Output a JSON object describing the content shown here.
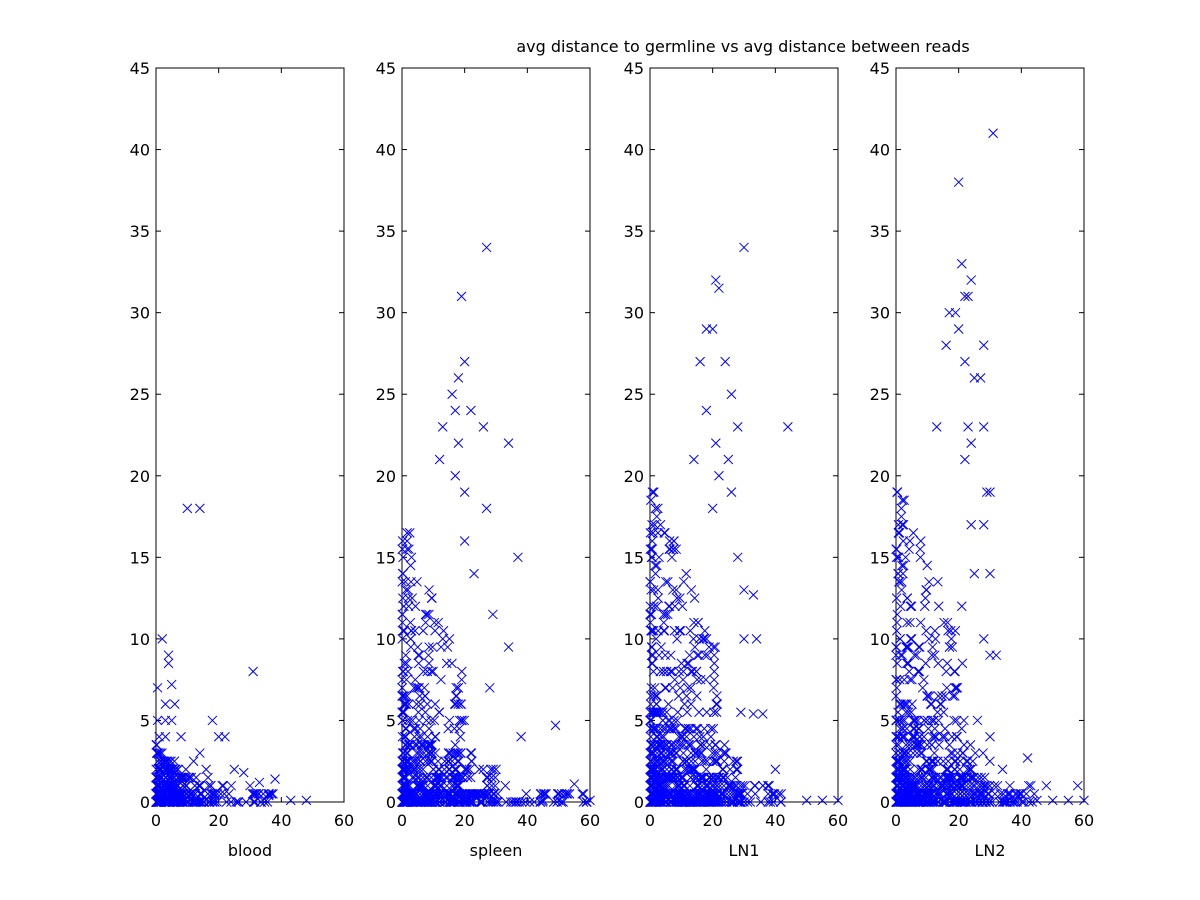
{
  "title": "avg distance to germline vs avg distance between reads",
  "colors": {
    "marker": "#0000ff",
    "axes": "#000000",
    "background": "#ffffff"
  },
  "chart_data": [
    {
      "type": "scatter",
      "marker": "x",
      "xlabel": "blood",
      "ylabel": "",
      "xlim": [
        0,
        60
      ],
      "ylim": [
        0,
        45
      ],
      "xticks": [
        0,
        20,
        40,
        60
      ],
      "yticks": [
        0,
        5,
        10,
        15,
        20,
        25,
        30,
        35,
        40,
        45
      ],
      "points": [
        [
          10,
          18
        ],
        [
          14,
          18
        ],
        [
          2,
          10
        ],
        [
          4,
          9
        ],
        [
          4,
          8.5
        ],
        [
          31,
          8
        ],
        [
          5,
          7.2
        ],
        [
          0.5,
          7
        ],
        [
          3,
          6
        ],
        [
          6,
          6
        ],
        [
          0.5,
          5
        ],
        [
          3,
          5
        ],
        [
          5,
          5
        ],
        [
          18,
          5
        ],
        [
          1,
          4
        ],
        [
          3,
          4
        ],
        [
          8,
          4
        ],
        [
          20,
          4
        ],
        [
          22,
          4
        ],
        [
          14,
          3
        ],
        [
          25,
          2
        ],
        [
          30,
          1
        ],
        [
          38,
          1.4
        ],
        [
          43,
          0.1
        ],
        [
          48,
          0.1
        ],
        [
          36,
          0.4
        ],
        [
          33,
          1.2
        ],
        [
          12,
          2.5
        ],
        [
          16,
          2
        ],
        [
          24,
          1
        ],
        [
          28,
          1.8
        ]
      ],
      "clusters": [
        {
          "x": [
            0,
            10
          ],
          "y": [
            0,
            3.5
          ],
          "n": 170
        },
        {
          "x": [
            0,
            20
          ],
          "y": [
            0,
            2.5
          ],
          "n": 120
        },
        {
          "x": [
            0,
            38
          ],
          "y": [
            0,
            1.5
          ],
          "n": 80
        }
      ]
    },
    {
      "type": "scatter",
      "marker": "x",
      "xlabel": "spleen",
      "ylabel": "",
      "xlim": [
        0,
        60
      ],
      "ylim": [
        0,
        45
      ],
      "xticks": [
        0,
        20,
        40,
        60
      ],
      "yticks": [
        0,
        5,
        10,
        15,
        20,
        25,
        30,
        35,
        40,
        45
      ],
      "points": [
        [
          27,
          34
        ],
        [
          19,
          31
        ],
        [
          20,
          27
        ],
        [
          18,
          26
        ],
        [
          16,
          25
        ],
        [
          17,
          24
        ],
        [
          22,
          24
        ],
        [
          26,
          23
        ],
        [
          13,
          23
        ],
        [
          18,
          22
        ],
        [
          34,
          22
        ],
        [
          12,
          21
        ],
        [
          17,
          20
        ],
        [
          20,
          19
        ],
        [
          27,
          18
        ],
        [
          37,
          15
        ],
        [
          20,
          16
        ],
        [
          23,
          14
        ],
        [
          29,
          11.5
        ],
        [
          34,
          9.5
        ],
        [
          38,
          4
        ],
        [
          49,
          4.7
        ],
        [
          55,
          1.1
        ],
        [
          60,
          0.1
        ],
        [
          50,
          0.1
        ],
        [
          45,
          0.1
        ],
        [
          28,
          7
        ],
        [
          30,
          2
        ],
        [
          33,
          1
        ]
      ],
      "clusters": [
        {
          "x": [
            0,
            20
          ],
          "y": [
            0,
            18
          ],
          "n": 300
        },
        {
          "x": [
            0,
            30
          ],
          "y": [
            0,
            5
          ],
          "n": 220
        },
        {
          "x": [
            0,
            60
          ],
          "y": [
            0,
            1
          ],
          "n": 120
        }
      ]
    },
    {
      "type": "scatter",
      "marker": "x",
      "xlabel": "LN1",
      "ylabel": "",
      "xlim": [
        0,
        60
      ],
      "ylim": [
        0,
        45
      ],
      "xticks": [
        0,
        20,
        40,
        60
      ],
      "yticks": [
        0,
        5,
        10,
        15,
        20,
        25,
        30,
        35,
        40,
        45
      ],
      "points": [
        [
          30,
          34
        ],
        [
          21,
          32
        ],
        [
          22,
          31.5
        ],
        [
          18,
          29
        ],
        [
          20,
          29
        ],
        [
          16,
          27
        ],
        [
          24,
          27
        ],
        [
          26,
          25
        ],
        [
          18,
          24
        ],
        [
          28,
          23
        ],
        [
          44,
          23
        ],
        [
          21,
          22
        ],
        [
          25,
          21
        ],
        [
          14,
          21
        ],
        [
          22,
          20
        ],
        [
          26,
          19
        ],
        [
          20,
          18
        ],
        [
          28,
          15
        ],
        [
          30,
          13
        ],
        [
          33,
          12.7
        ],
        [
          30,
          10
        ],
        [
          34,
          10
        ],
        [
          29,
          5.5
        ],
        [
          33,
          5.4
        ],
        [
          36,
          5.4
        ],
        [
          40,
          2
        ],
        [
          50,
          0.1
        ],
        [
          55,
          0.1
        ],
        [
          60,
          0.1
        ],
        [
          38,
          1
        ]
      ],
      "clusters": [
        {
          "x": [
            0,
            22
          ],
          "y": [
            0,
            20
          ],
          "n": 340
        },
        {
          "x": [
            0,
            30
          ],
          "y": [
            0,
            6
          ],
          "n": 240
        },
        {
          "x": [
            0,
            42
          ],
          "y": [
            0,
            2
          ],
          "n": 150
        }
      ]
    },
    {
      "type": "scatter",
      "marker": "x",
      "xlabel": "LN2",
      "ylabel": "",
      "xlim": [
        0,
        60
      ],
      "ylim": [
        0,
        45
      ],
      "xticks": [
        0,
        20,
        40,
        60
      ],
      "yticks": [
        0,
        5,
        10,
        15,
        20,
        25,
        30,
        35,
        40,
        45
      ],
      "points": [
        [
          31,
          41
        ],
        [
          20,
          38
        ],
        [
          21,
          33
        ],
        [
          24,
          32
        ],
        [
          22,
          31
        ],
        [
          23,
          31
        ],
        [
          19,
          30
        ],
        [
          17,
          30
        ],
        [
          20,
          29
        ],
        [
          28,
          28
        ],
        [
          16,
          28
        ],
        [
          22,
          27
        ],
        [
          25,
          26
        ],
        [
          27,
          26
        ],
        [
          23,
          23
        ],
        [
          28,
          23
        ],
        [
          13,
          23
        ],
        [
          24,
          22
        ],
        [
          22,
          21
        ],
        [
          29,
          19
        ],
        [
          30,
          19
        ],
        [
          24,
          17
        ],
        [
          28,
          17
        ],
        [
          25,
          14
        ],
        [
          30,
          14
        ],
        [
          21,
          12
        ],
        [
          28,
          10
        ],
        [
          30,
          9
        ],
        [
          32,
          9
        ],
        [
          26,
          5
        ],
        [
          30,
          4
        ],
        [
          34,
          2
        ],
        [
          42,
          2.7
        ],
        [
          48,
          1
        ],
        [
          58,
          1
        ],
        [
          55,
          0.1
        ],
        [
          50,
          0.1
        ],
        [
          45,
          0.1
        ],
        [
          60,
          0.1
        ]
      ],
      "clusters": [
        {
          "x": [
            0,
            22
          ],
          "y": [
            0,
            20
          ],
          "n": 320
        },
        {
          "x": [
            0,
            30
          ],
          "y": [
            0,
            6
          ],
          "n": 230
        },
        {
          "x": [
            0,
            45
          ],
          "y": [
            0,
            2
          ],
          "n": 150
        }
      ]
    }
  ]
}
